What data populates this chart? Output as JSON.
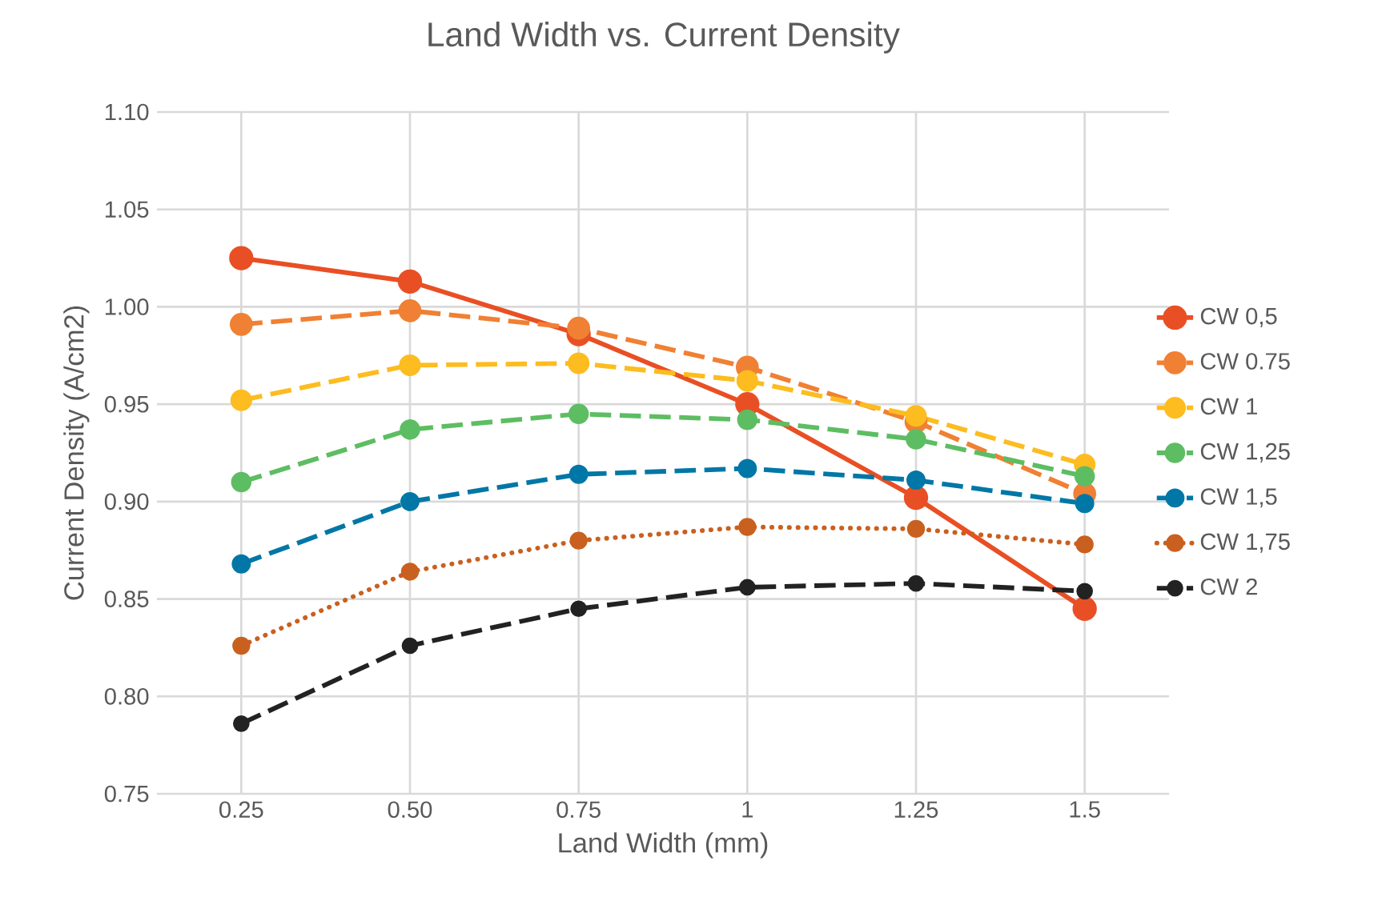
{
  "chart_data": {
    "type": "line",
    "title": "Land Width vs. Current Density",
    "xlabel": "Land Width (mm)",
    "ylabel": "Current Density (A/cm2)",
    "categories": [
      "0.25",
      "0.50",
      "0.75",
      "1",
      "1.25",
      "1.5"
    ],
    "series": [
      {
        "name": "CW 0,5",
        "color": "#e94f24",
        "line_style": "solid",
        "values": [
          1.025,
          1.013,
          0.986,
          0.95,
          0.902,
          0.845
        ]
      },
      {
        "name": "CW 0.75",
        "color": "#f08033",
        "line_style": "dashed",
        "values": [
          0.991,
          0.998,
          0.989,
          0.969,
          0.941,
          0.904
        ]
      },
      {
        "name": "CW 1",
        "color": "#fdbc1f",
        "line_style": "dashed",
        "values": [
          0.952,
          0.97,
          0.971,
          0.962,
          0.944,
          0.919
        ]
      },
      {
        "name": "CW 1,25",
        "color": "#5dbd62",
        "line_style": "dashed",
        "values": [
          0.91,
          0.937,
          0.945,
          0.942,
          0.932,
          0.913
        ]
      },
      {
        "name": "CW 1,5",
        "color": "#0077a6",
        "line_style": "dashed",
        "values": [
          0.868,
          0.9,
          0.914,
          0.917,
          0.911,
          0.899
        ]
      },
      {
        "name": "CW 1,75",
        "color": "#c9601f",
        "line_style": "dotted",
        "values": [
          0.826,
          0.864,
          0.88,
          0.887,
          0.886,
          0.878
        ]
      },
      {
        "name": "CW 2",
        "color": "#222222",
        "line_style": "dashed",
        "values": [
          0.786,
          0.826,
          0.845,
          0.856,
          0.858,
          0.854
        ]
      }
    ],
    "ylim": [
      0.75,
      1.1
    ],
    "yticks": [
      {
        "value": 0.75,
        "label": "0.75"
      },
      {
        "value": 0.8,
        "label": "0.80"
      },
      {
        "value": 0.85,
        "label": "0.85"
      },
      {
        "value": 0.9,
        "label": "0.90"
      },
      {
        "value": 0.95,
        "label": "0.95"
      },
      {
        "value": 1.0,
        "label": "1.00"
      },
      {
        "value": 1.05,
        "label": "1.05"
      },
      {
        "value": 1.1,
        "label": "1.10"
      }
    ],
    "grid": true,
    "legend": "right",
    "marker": "circle"
  }
}
